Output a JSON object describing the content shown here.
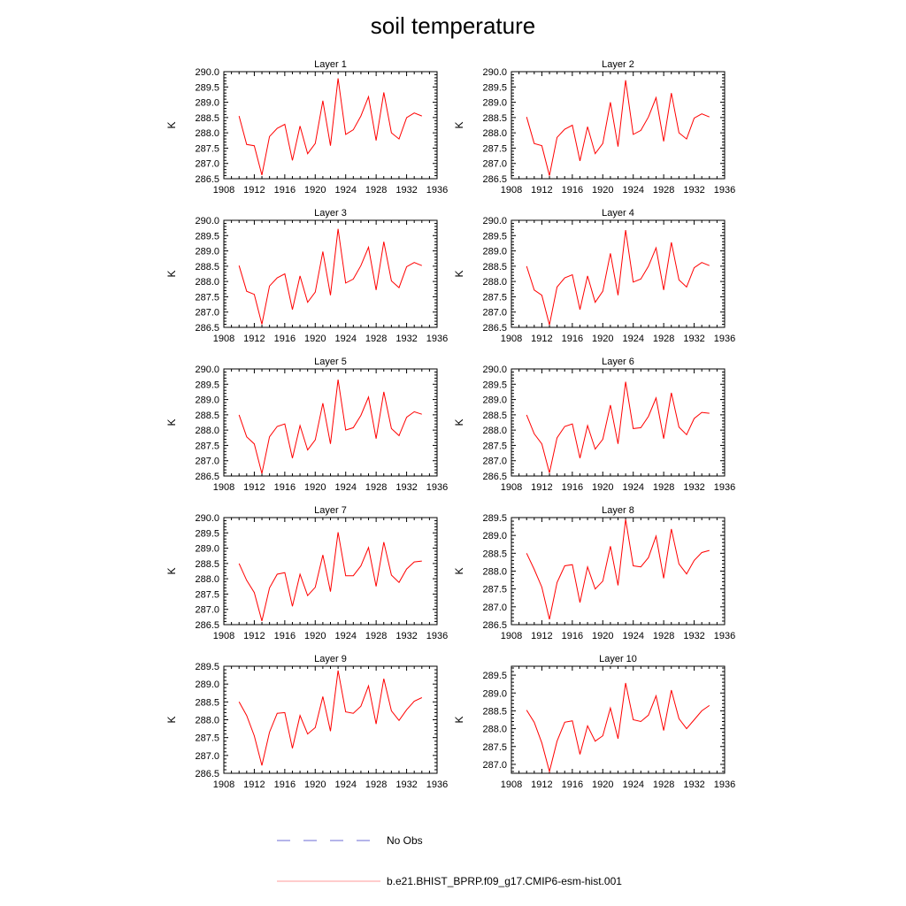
{
  "title": "soil temperature",
  "colors": {
    "model_line": "#ff0000",
    "obs_line": "#6b6bd6"
  },
  "legend": [
    {
      "label": "No Obs",
      "style": "dashed",
      "color": "#6b6bd6"
    },
    {
      "label": "b.e21.BHIST_BPRP.f09_g17.CMIP6-esm-hist.001",
      "style": "solid",
      "color": "#ff9999"
    }
  ],
  "chart_data": [
    {
      "type": "line",
      "title": "Layer 1",
      "ylabel": "K",
      "xlim": [
        1908,
        1936
      ],
      "ylim": [
        286.5,
        290.0
      ],
      "xticks": [
        "1908",
        "1912",
        "1916",
        "1920",
        "1924",
        "1928",
        "1932",
        "1936"
      ],
      "yticks": [
        "286.5",
        "287.0",
        "287.5",
        "288.0",
        "288.5",
        "289.0",
        "289.5",
        "290.0"
      ],
      "x": [
        1910,
        1911,
        1912,
        1913,
        1914,
        1915,
        1916,
        1917,
        1918,
        1919,
        1920,
        1921,
        1922,
        1923,
        1924,
        1925,
        1926,
        1927,
        1928,
        1929,
        1930,
        1931,
        1932,
        1933,
        1934
      ],
      "series": [
        {
          "name": "b.e21.BHIST_BPRP.f09_g17.CMIP6-esm-hist.001",
          "values": [
            288.55,
            287.62,
            287.58,
            286.62,
            287.88,
            288.15,
            288.28,
            287.1,
            288.22,
            287.32,
            287.65,
            289.05,
            287.58,
            289.78,
            287.95,
            288.1,
            288.55,
            289.18,
            287.75,
            289.32,
            288.0,
            287.8,
            288.5,
            288.65,
            288.55
          ]
        }
      ]
    },
    {
      "type": "line",
      "title": "Layer 2",
      "ylabel": "K",
      "xlim": [
        1908,
        1936
      ],
      "ylim": [
        286.5,
        290.0
      ],
      "xticks": [
        "1908",
        "1912",
        "1916",
        "1920",
        "1924",
        "1928",
        "1932",
        "1936"
      ],
      "yticks": [
        "286.5",
        "287.0",
        "287.5",
        "288.0",
        "288.5",
        "289.0",
        "289.5",
        "290.0"
      ],
      "x": [
        1910,
        1911,
        1912,
        1913,
        1914,
        1915,
        1916,
        1917,
        1918,
        1919,
        1920,
        1921,
        1922,
        1923,
        1924,
        1925,
        1926,
        1927,
        1928,
        1929,
        1930,
        1931,
        1932,
        1933,
        1934
      ],
      "series": [
        {
          "name": "b.e21.BHIST_BPRP.f09_g17.CMIP6-esm-hist.001",
          "values": [
            288.52,
            287.65,
            287.58,
            286.6,
            287.85,
            288.12,
            288.25,
            287.08,
            288.2,
            287.32,
            287.65,
            289.0,
            287.55,
            289.72,
            287.95,
            288.08,
            288.52,
            289.15,
            287.72,
            289.3,
            288.0,
            287.8,
            288.48,
            288.62,
            288.52
          ]
        }
      ]
    },
    {
      "type": "line",
      "title": "Layer 3",
      "ylabel": "K",
      "xlim": [
        1908,
        1936
      ],
      "ylim": [
        286.5,
        290.0
      ],
      "xticks": [
        "1908",
        "1912",
        "1916",
        "1920",
        "1924",
        "1928",
        "1932",
        "1936"
      ],
      "yticks": [
        "286.5",
        "287.0",
        "287.5",
        "288.0",
        "288.5",
        "289.0",
        "289.5",
        "290.0"
      ],
      "x": [
        1910,
        1911,
        1912,
        1913,
        1914,
        1915,
        1916,
        1917,
        1918,
        1919,
        1920,
        1921,
        1922,
        1923,
        1924,
        1925,
        1926,
        1927,
        1928,
        1929,
        1930,
        1931,
        1932,
        1933,
        1934
      ],
      "series": [
        {
          "name": "b.e21.BHIST_BPRP.f09_g17.CMIP6-esm-hist.001",
          "values": [
            288.52,
            287.68,
            287.58,
            286.6,
            287.85,
            288.12,
            288.25,
            287.08,
            288.18,
            287.32,
            287.65,
            288.98,
            287.55,
            289.72,
            287.95,
            288.08,
            288.52,
            289.12,
            287.72,
            289.3,
            288.02,
            287.8,
            288.48,
            288.62,
            288.52
          ]
        }
      ]
    },
    {
      "type": "line",
      "title": "Layer 4",
      "ylabel": "K",
      "xlim": [
        1908,
        1936
      ],
      "ylim": [
        286.5,
        290.0
      ],
      "xticks": [
        "1908",
        "1912",
        "1916",
        "1920",
        "1924",
        "1928",
        "1932",
        "1936"
      ],
      "yticks": [
        "286.5",
        "287.0",
        "287.5",
        "288.0",
        "288.5",
        "289.0",
        "289.5",
        "290.0"
      ],
      "x": [
        1910,
        1911,
        1912,
        1913,
        1914,
        1915,
        1916,
        1917,
        1918,
        1919,
        1920,
        1921,
        1922,
        1923,
        1924,
        1925,
        1926,
        1927,
        1928,
        1929,
        1930,
        1931,
        1932,
        1933,
        1934
      ],
      "series": [
        {
          "name": "b.e21.BHIST_BPRP.f09_g17.CMIP6-esm-hist.001",
          "values": [
            288.5,
            287.72,
            287.55,
            286.58,
            287.82,
            288.12,
            288.22,
            287.08,
            288.18,
            287.32,
            287.68,
            288.92,
            287.55,
            289.68,
            287.98,
            288.08,
            288.5,
            289.1,
            287.72,
            289.28,
            288.05,
            287.82,
            288.45,
            288.62,
            288.52
          ]
        }
      ]
    },
    {
      "type": "line",
      "title": "Layer 5",
      "ylabel": "K",
      "xlim": [
        1908,
        1936
      ],
      "ylim": [
        286.5,
        290.0
      ],
      "xticks": [
        "1908",
        "1912",
        "1916",
        "1920",
        "1924",
        "1928",
        "1932",
        "1936"
      ],
      "yticks": [
        "286.5",
        "287.0",
        "287.5",
        "288.0",
        "288.5",
        "289.0",
        "289.5",
        "290.0"
      ],
      "x": [
        1910,
        1911,
        1912,
        1913,
        1914,
        1915,
        1916,
        1917,
        1918,
        1919,
        1920,
        1921,
        1922,
        1923,
        1924,
        1925,
        1926,
        1927,
        1928,
        1929,
        1930,
        1931,
        1932,
        1933,
        1934
      ],
      "series": [
        {
          "name": "b.e21.BHIST_BPRP.f09_g17.CMIP6-esm-hist.001",
          "values": [
            288.5,
            287.78,
            287.55,
            286.58,
            287.78,
            288.12,
            288.2,
            287.08,
            288.15,
            287.35,
            287.68,
            288.88,
            287.55,
            289.65,
            288.0,
            288.08,
            288.48,
            289.08,
            287.72,
            289.25,
            288.05,
            287.82,
            288.42,
            288.6,
            288.52
          ]
        }
      ]
    },
    {
      "type": "line",
      "title": "Layer 6",
      "ylabel": "K",
      "xlim": [
        1908,
        1936
      ],
      "ylim": [
        286.5,
        290.0
      ],
      "xticks": [
        "1908",
        "1912",
        "1916",
        "1920",
        "1924",
        "1928",
        "1932",
        "1936"
      ],
      "yticks": [
        "286.5",
        "287.0",
        "287.5",
        "288.0",
        "288.5",
        "289.0",
        "289.5",
        "290.0"
      ],
      "x": [
        1910,
        1911,
        1912,
        1913,
        1914,
        1915,
        1916,
        1917,
        1918,
        1919,
        1920,
        1921,
        1922,
        1923,
        1924,
        1925,
        1926,
        1927,
        1928,
        1929,
        1930,
        1931,
        1932,
        1933,
        1934
      ],
      "series": [
        {
          "name": "b.e21.BHIST_BPRP.f09_g17.CMIP6-esm-hist.001",
          "values": [
            288.5,
            287.88,
            287.55,
            286.6,
            287.75,
            288.12,
            288.2,
            287.08,
            288.15,
            287.38,
            287.7,
            288.82,
            287.55,
            289.58,
            288.05,
            288.08,
            288.45,
            289.05,
            287.72,
            289.22,
            288.1,
            287.85,
            288.38,
            288.58,
            288.55
          ]
        }
      ]
    },
    {
      "type": "line",
      "title": "Layer 7",
      "ylabel": "K",
      "xlim": [
        1908,
        1936
      ],
      "ylim": [
        286.5,
        290.0
      ],
      "xticks": [
        "1908",
        "1912",
        "1916",
        "1920",
        "1924",
        "1928",
        "1932",
        "1936"
      ],
      "yticks": [
        "286.5",
        "287.0",
        "287.5",
        "288.0",
        "288.5",
        "289.0",
        "289.5",
        "290.0"
      ],
      "x": [
        1910,
        1911,
        1912,
        1913,
        1914,
        1915,
        1916,
        1917,
        1918,
        1919,
        1920,
        1921,
        1922,
        1923,
        1924,
        1925,
        1926,
        1927,
        1928,
        1929,
        1930,
        1931,
        1932,
        1933,
        1934
      ],
      "series": [
        {
          "name": "b.e21.BHIST_BPRP.f09_g17.CMIP6-esm-hist.001",
          "values": [
            288.5,
            287.95,
            287.55,
            286.62,
            287.7,
            288.15,
            288.2,
            287.1,
            288.15,
            287.45,
            287.72,
            288.78,
            287.58,
            289.52,
            288.1,
            288.1,
            288.42,
            289.02,
            287.75,
            289.2,
            288.12,
            287.88,
            288.32,
            288.55,
            288.58
          ]
        }
      ]
    },
    {
      "type": "line",
      "title": "Layer 8",
      "ylabel": "K",
      "xlim": [
        1908,
        1936
      ],
      "ylim": [
        286.5,
        289.5
      ],
      "xticks": [
        "1908",
        "1912",
        "1916",
        "1920",
        "1924",
        "1928",
        "1932",
        "1936"
      ],
      "yticks": [
        "286.5",
        "287.0",
        "287.5",
        "288.0",
        "288.5",
        "289.0",
        "289.5"
      ],
      "x": [
        1910,
        1911,
        1912,
        1913,
        1914,
        1915,
        1916,
        1917,
        1918,
        1919,
        1920,
        1921,
        1922,
        1923,
        1924,
        1925,
        1926,
        1927,
        1928,
        1929,
        1930,
        1931,
        1932,
        1933,
        1934
      ],
      "series": [
        {
          "name": "b.e21.BHIST_BPRP.f09_g17.CMIP6-esm-hist.001",
          "values": [
            288.5,
            288.05,
            287.55,
            286.65,
            287.68,
            288.15,
            288.18,
            287.12,
            288.12,
            287.5,
            287.72,
            288.7,
            287.6,
            289.45,
            288.15,
            288.12,
            288.38,
            288.98,
            287.8,
            289.18,
            288.2,
            287.92,
            288.3,
            288.52,
            288.58
          ]
        }
      ]
    },
    {
      "type": "line",
      "title": "Layer 9",
      "ylabel": "K",
      "xlim": [
        1908,
        1936
      ],
      "ylim": [
        286.5,
        289.5
      ],
      "xticks": [
        "1908",
        "1912",
        "1916",
        "1920",
        "1924",
        "1928",
        "1932",
        "1936"
      ],
      "yticks": [
        "286.5",
        "287.0",
        "287.5",
        "288.0",
        "288.5",
        "289.0",
        "289.5"
      ],
      "x": [
        1910,
        1911,
        1912,
        1913,
        1914,
        1915,
        1916,
        1917,
        1918,
        1919,
        1920,
        1921,
        1922,
        1923,
        1924,
        1925,
        1926,
        1927,
        1928,
        1929,
        1930,
        1931,
        1932,
        1933,
        1934
      ],
      "series": [
        {
          "name": "b.e21.BHIST_BPRP.f09_g17.CMIP6-esm-hist.001",
          "values": [
            288.5,
            288.12,
            287.55,
            286.72,
            287.65,
            288.18,
            288.2,
            287.2,
            288.12,
            287.6,
            287.78,
            288.65,
            287.68,
            289.38,
            288.22,
            288.18,
            288.38,
            288.95,
            287.88,
            289.15,
            288.25,
            287.98,
            288.28,
            288.52,
            288.62
          ]
        }
      ]
    },
    {
      "type": "line",
      "title": "Layer 10",
      "ylabel": "K",
      "xlim": [
        1908,
        1936
      ],
      "ylim": [
        286.75,
        289.75
      ],
      "xticks": [
        "1908",
        "1912",
        "1916",
        "1920",
        "1924",
        "1928",
        "1932",
        "1936"
      ],
      "yticks": [
        "287.0",
        "287.5",
        "288.0",
        "288.5",
        "289.0",
        "289.5"
      ],
      "x": [
        1910,
        1911,
        1912,
        1913,
        1914,
        1915,
        1916,
        1917,
        1918,
        1919,
        1920,
        1921,
        1922,
        1923,
        1924,
        1925,
        1926,
        1927,
        1928,
        1929,
        1930,
        1931,
        1932,
        1933,
        1934
      ],
      "series": [
        {
          "name": "b.e21.BHIST_BPRP.f09_g17.CMIP6-esm-hist.001",
          "values": [
            288.52,
            288.18,
            287.6,
            286.8,
            287.65,
            288.18,
            288.22,
            287.28,
            288.08,
            287.65,
            287.8,
            288.58,
            287.72,
            289.28,
            288.25,
            288.2,
            288.38,
            288.92,
            287.95,
            289.08,
            288.28,
            288.0,
            288.25,
            288.5,
            288.65
          ]
        }
      ]
    }
  ]
}
